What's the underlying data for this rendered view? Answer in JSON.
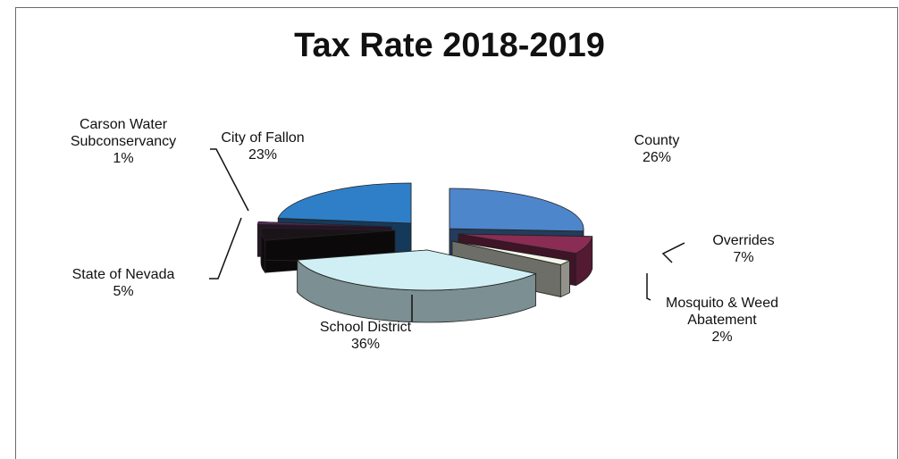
{
  "chart_data": {
    "type": "pie",
    "title": "Tax Rate 2018-2019",
    "slices": [
      {
        "label": "County",
        "label_lines": [
          "County"
        ],
        "value": 26,
        "value_label": "26%",
        "color": "#4e86cc"
      },
      {
        "label": "Overrides",
        "label_lines": [
          "Overrides"
        ],
        "value": 7,
        "value_label": "7%",
        "color": "#8a2c54"
      },
      {
        "label": "Mosquito & Weed Abatement",
        "label_lines": [
          "Mosquito & Weed",
          "Abatement"
        ],
        "value": 2,
        "value_label": "2%",
        "color": "#f4f4e8"
      },
      {
        "label": "School District",
        "label_lines": [
          "School District"
        ],
        "value": 36,
        "value_label": "36%",
        "color": "#cfeff4"
      },
      {
        "label": "State of Nevada",
        "label_lines": [
          "State of Nevada"
        ],
        "value": 5,
        "value_label": "5%",
        "color": "#1a1418"
      },
      {
        "label": "Carson Water Subconservancy",
        "label_lines": [
          "Carson Water",
          "Subconservancy"
        ],
        "value": 1,
        "value_label": "1%",
        "color": "#5a2a5a"
      },
      {
        "label": "City of Fallon",
        "label_lines": [
          "City of Fallon"
        ],
        "value": 23,
        "value_label": "23%",
        "color": "#2f7fc8"
      }
    ]
  }
}
